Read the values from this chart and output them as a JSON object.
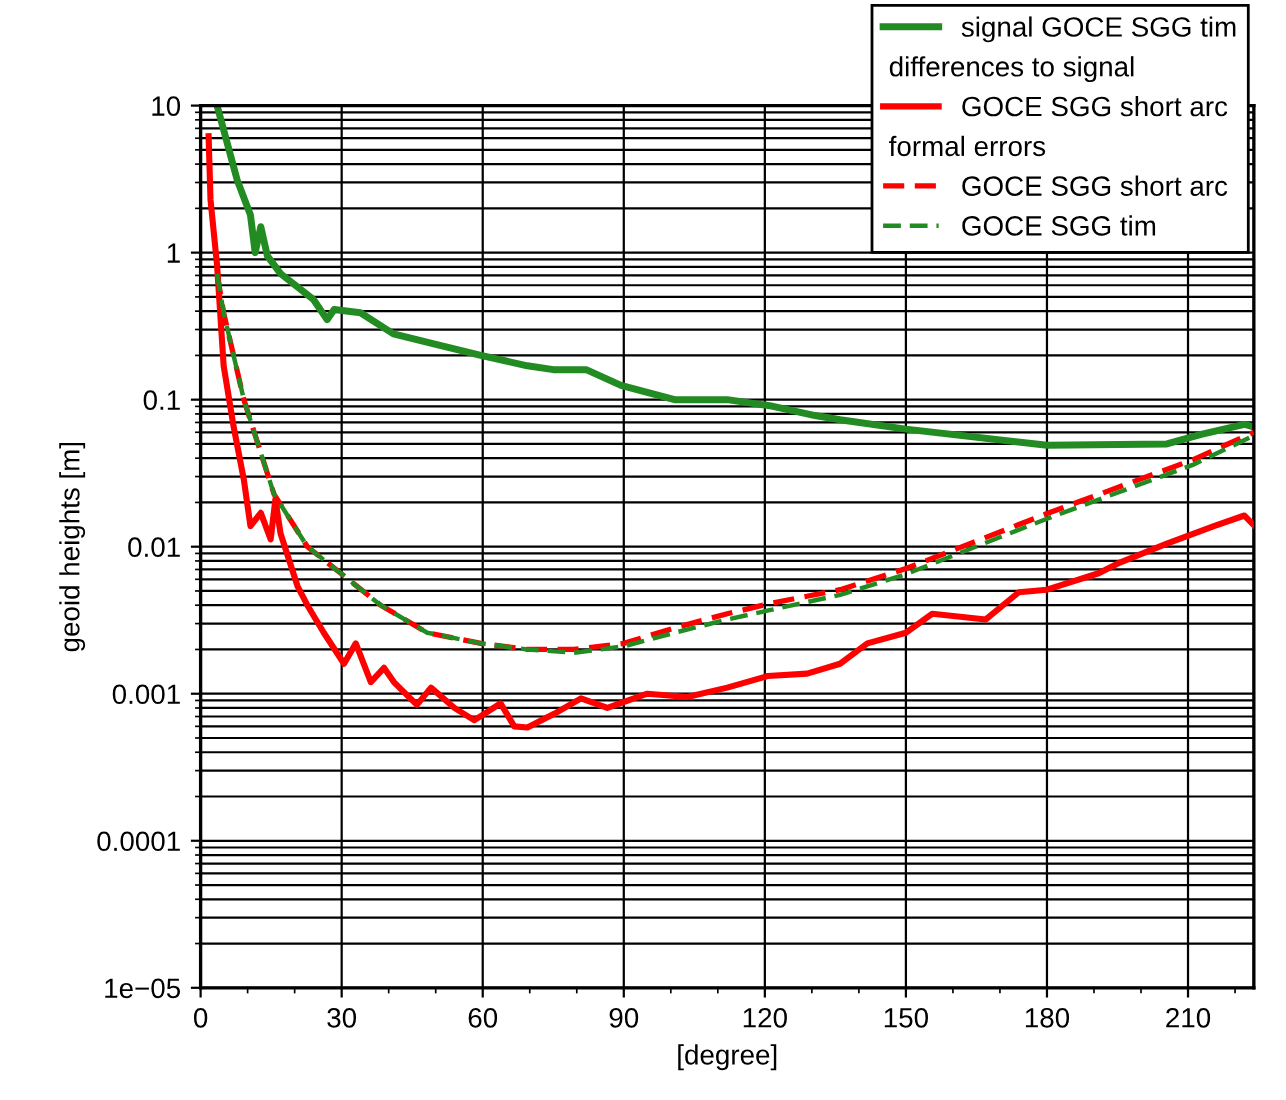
{
  "chart_data": {
    "type": "line",
    "xlabel": "[degree]",
    "ylabel": "geoid heights [m]",
    "log": "y",
    "grid": true,
    "legend": "top right",
    "marker": "none",
    "xlim": [
      0,
      224
    ],
    "xticks": [
      0,
      30,
      60,
      90,
      120,
      150,
      180,
      210
    ],
    "ylim": [
      1e-05,
      10
    ],
    "yticks": [
      {
        "value": 1e-05,
        "label": "1e−05"
      },
      {
        "value": 0.0001,
        "label": "0.0001"
      },
      {
        "value": 0.001,
        "label": "0.001"
      },
      {
        "value": 0.01,
        "label": "0.01"
      },
      {
        "value": 0.1,
        "label": "0.1"
      },
      {
        "value": 1,
        "label": "1"
      },
      {
        "value": 10,
        "label": "10"
      }
    ],
    "annotations": [
      "differences to signal",
      "formal errors"
    ],
    "series": [
      {
        "name": "signal GOCE SGG tim",
        "color": "#228b22",
        "line_style": "solid",
        "x": [
          3.5,
          7.8,
          10.6,
          11.6,
          12.8,
          14.2,
          17,
          24,
          26.9,
          28.4,
          34,
          41,
          49.6,
          59.6,
          69.5,
          75,
          82,
          89.4,
          100.8,
          112,
          121,
          130.7,
          136,
          150,
          180,
          205.5,
          212.8,
          222,
          224
        ],
        "values": [
          10,
          3.1,
          1.8,
          1.0,
          1.5,
          0.95,
          0.72,
          0.48,
          0.35,
          0.41,
          0.39,
          0.28,
          0.24,
          0.2,
          0.17,
          0.16,
          0.16,
          0.125,
          0.1,
          0.1,
          0.091,
          0.078,
          0.073,
          0.063,
          0.049,
          0.05,
          0.058,
          0.068,
          0.065
        ]
      },
      {
        "name": "GOCE SGG short arc",
        "color": "#ff0000",
        "line_style": "solid",
        "x": [
          1.7,
          2.1,
          3.5,
          4.9,
          7,
          9.2,
          10.6,
          12.8,
          14.9,
          15.9,
          17,
          20.6,
          22.7,
          26.2,
          30.5,
          33,
          36.2,
          39,
          41.1,
          46,
          49,
          54,
          58.2,
          63.8,
          66.7,
          69.5,
          75.2,
          80.9,
          86.5,
          95,
          103.5,
          112,
          120.6,
          129,
          136,
          141.8,
          150,
          155.6,
          167,
          174,
          180,
          191,
          195.5,
          205.5,
          215.5,
          222,
          224
        ],
        "values": [
          6.2,
          2.3,
          0.82,
          0.17,
          0.066,
          0.0285,
          0.0138,
          0.017,
          0.0112,
          0.021,
          0.0123,
          0.0054,
          0.004,
          0.0026,
          0.0016,
          0.0022,
          0.0012,
          0.0015,
          0.0012,
          0.00084,
          0.0011,
          0.0008,
          0.00066,
          0.00086,
          0.0006,
          0.00059,
          0.00073,
          0.00093,
          0.0008,
          0.001,
          0.00095,
          0.0011,
          0.00132,
          0.00137,
          0.0016,
          0.0022,
          0.0026,
          0.0035,
          0.0032,
          0.0049,
          0.0051,
          0.0066,
          0.0078,
          0.0105,
          0.0138,
          0.0163,
          0.014
        ]
      },
      {
        "name": "GOCE SGG short arc",
        "color": "#ff0000",
        "line_style": "dashed",
        "x": [
          3.5,
          4.9,
          9.2,
          15.6,
          22.7,
          29.8,
          38.3,
          48.2,
          59.6,
          69.5,
          79.4,
          90,
          100.8,
          112,
          121,
          136,
          150,
          180,
          211,
          224
        ],
        "values": [
          0.72,
          0.39,
          0.1,
          0.0228,
          0.01,
          0.0066,
          0.004,
          0.0026,
          0.0022,
          0.002,
          0.002,
          0.0022,
          0.0028,
          0.0035,
          0.0041,
          0.0051,
          0.0071,
          0.0168,
          0.039,
          0.06
        ]
      },
      {
        "name": "GOCE SGG tim",
        "color": "#228b22",
        "line_style": "dashed",
        "x": [
          3.5,
          4.9,
          9.2,
          15.6,
          22.7,
          29.8,
          38.3,
          48.2,
          59.6,
          69.5,
          79.4,
          90,
          100.8,
          112,
          121,
          136,
          150,
          180,
          211,
          224
        ],
        "values": [
          0.72,
          0.39,
          0.1,
          0.0228,
          0.01,
          0.0066,
          0.004,
          0.0026,
          0.0022,
          0.002,
          0.0019,
          0.0021,
          0.0026,
          0.0032,
          0.0037,
          0.0047,
          0.0065,
          0.0155,
          0.036,
          0.057
        ]
      }
    ]
  }
}
